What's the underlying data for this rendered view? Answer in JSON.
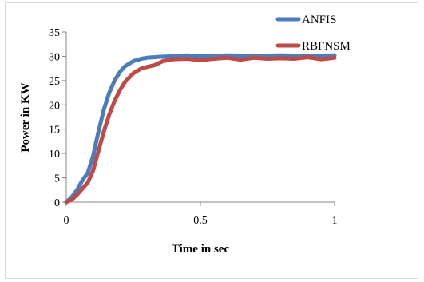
{
  "chart_data": {
    "type": "line",
    "title": "",
    "xlabel": "Time in sec",
    "ylabel": "Power in KW",
    "xlim": [
      0,
      1
    ],
    "ylim": [
      0,
      35
    ],
    "xticks": [
      0,
      0.5,
      1
    ],
    "xtick_labels": [
      "0",
      "0.5",
      "1"
    ],
    "yticks": [
      0,
      5,
      10,
      15,
      20,
      25,
      30,
      35
    ],
    "ytick_labels": [
      "0",
      "5",
      "10",
      "15",
      "20",
      "25",
      "30",
      "35"
    ],
    "grid": false,
    "legend_position": "top-right",
    "series": [
      {
        "name": "ANFIS",
        "color": "#4a7ebb",
        "x": [
          0,
          0.02,
          0.04,
          0.06,
          0.08,
          0.1,
          0.12,
          0.14,
          0.16,
          0.18,
          0.2,
          0.22,
          0.25,
          0.28,
          0.3,
          0.35,
          0.4,
          0.45,
          0.5,
          0.6,
          0.7,
          0.8,
          0.9,
          1.0
        ],
        "y": [
          0,
          1,
          2.5,
          4.5,
          6,
          9.5,
          14.5,
          19,
          22.5,
          25,
          26.8,
          28,
          29,
          29.5,
          29.7,
          29.9,
          30,
          30.2,
          30,
          30.2,
          30.1,
          30.2,
          30.1,
          30.2
        ]
      },
      {
        "name": "RBFNSM",
        "color": "#be4b48",
        "x": [
          0,
          0.02,
          0.04,
          0.06,
          0.08,
          0.1,
          0.12,
          0.14,
          0.16,
          0.18,
          0.2,
          0.22,
          0.25,
          0.28,
          0.3,
          0.33,
          0.36,
          0.4,
          0.45,
          0.5,
          0.55,
          0.6,
          0.65,
          0.7,
          0.75,
          0.8,
          0.85,
          0.9,
          0.95,
          1.0
        ],
        "y": [
          0,
          0.5,
          1.5,
          2.8,
          4,
          6.5,
          10.5,
          14.5,
          18,
          20.8,
          23,
          24.8,
          26.5,
          27.5,
          27.8,
          28.2,
          29,
          29.4,
          29.5,
          29.2,
          29.5,
          29.7,
          29.3,
          29.7,
          29.5,
          29.6,
          29.5,
          29.8,
          29.4,
          29.7
        ]
      }
    ]
  }
}
